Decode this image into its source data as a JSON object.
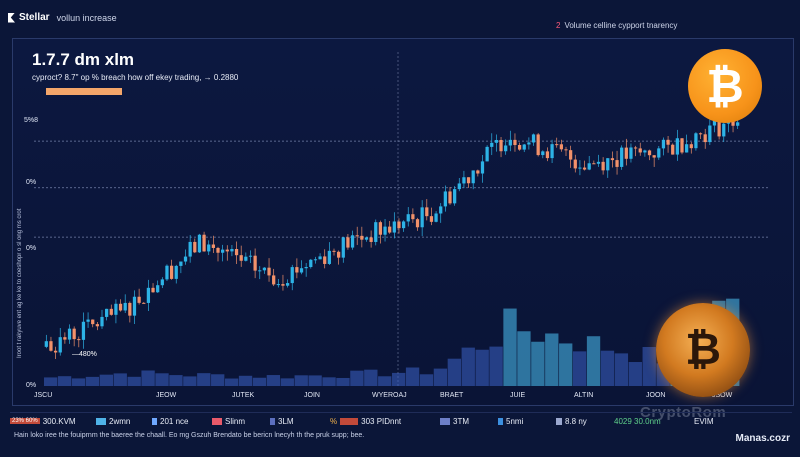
{
  "header": {
    "brand": "Stellar",
    "brand_sub": "vollun increase",
    "top_right_num": "2",
    "top_right_text": "Volume celline cypport tnarency"
  },
  "headline": "1.7.7 dm xlm",
  "subline": "cyproct? 8.7\" op % breach how off ekey trading,   → 0.2880",
  "y_labels": [
    "5%8",
    "0%",
    "0%",
    "0%",
    "0%"
  ],
  "side_text": "Iroot  t    rakyuve   ent   ag  ke ke to coeshopr o sl ong ms crot",
  "pct_label": "—480%",
  "x_labels": [
    "JSCU",
    "JEOW",
    "JUTEK",
    "JOIN",
    "WYEROAJ",
    "BRAET",
    "JUIE",
    "ALTIN",
    "JOON",
    "JSOW"
  ],
  "legend": [
    {
      "text": "300.KVM",
      "color": "#f29a6b",
      "tag": "23% 60%"
    },
    {
      "text": "2wmn",
      "color": "#4fb3e8"
    },
    {
      "text": "201 nce",
      "color": "#6fa8ff"
    },
    {
      "text": "Slinm",
      "color": "#e85a6a"
    },
    {
      "text": "3LM",
      "color": "#5c6fbf"
    },
    {
      "text": "303 PIDnnt",
      "color": "#f2b14a",
      "tag": "%"
    },
    {
      "text": "3TM",
      "color": "#6d7fc7"
    },
    {
      "text": "5nmi",
      "color": "#3c90e0"
    },
    {
      "text": "8.8 ny",
      "color": "#9ba8cf"
    },
    {
      "text": "4029 30.0nm",
      "color": "#5fd08a"
    },
    {
      "text": "EVIM",
      "color": "#e8ecf6"
    }
  ],
  "footer": "Hain loko iree the fouiprnm the baeree the chaall. Eo mg Gszuh Brendato be bericn lnecyh th the pruk supp; bee.",
  "brand_footer": "Manas.cozr",
  "watermark": "CryptoRom",
  "colors": {
    "up": "#2db3e6",
    "down": "#f2916a",
    "volume": "#3d63c9",
    "volume_hi": "#4cc3f5",
    "accent": "#f7931a"
  },
  "chart_data": {
    "type": "candlestick",
    "categories": [
      "JSCU",
      "JEOW",
      "JUTEK",
      "JOIN",
      "WYEROAJ",
      "BRAET",
      "JUIE",
      "ALTIN",
      "JOON",
      "JSOW"
    ],
    "close": [
      0.18,
      0.206,
      0.256,
      0.23,
      0.258,
      0.277,
      0.335,
      0.314,
      0.323,
      0.347
    ],
    "volume": [
      0.08,
      0.12,
      0.1,
      0.09,
      0.11,
      0.14,
      0.55,
      0.4,
      0.25,
      0.95
    ],
    "ylim": [
      0.15,
      0.36
    ],
    "reference_lines": [
      0.33,
      0.296,
      0.26
    ]
  }
}
